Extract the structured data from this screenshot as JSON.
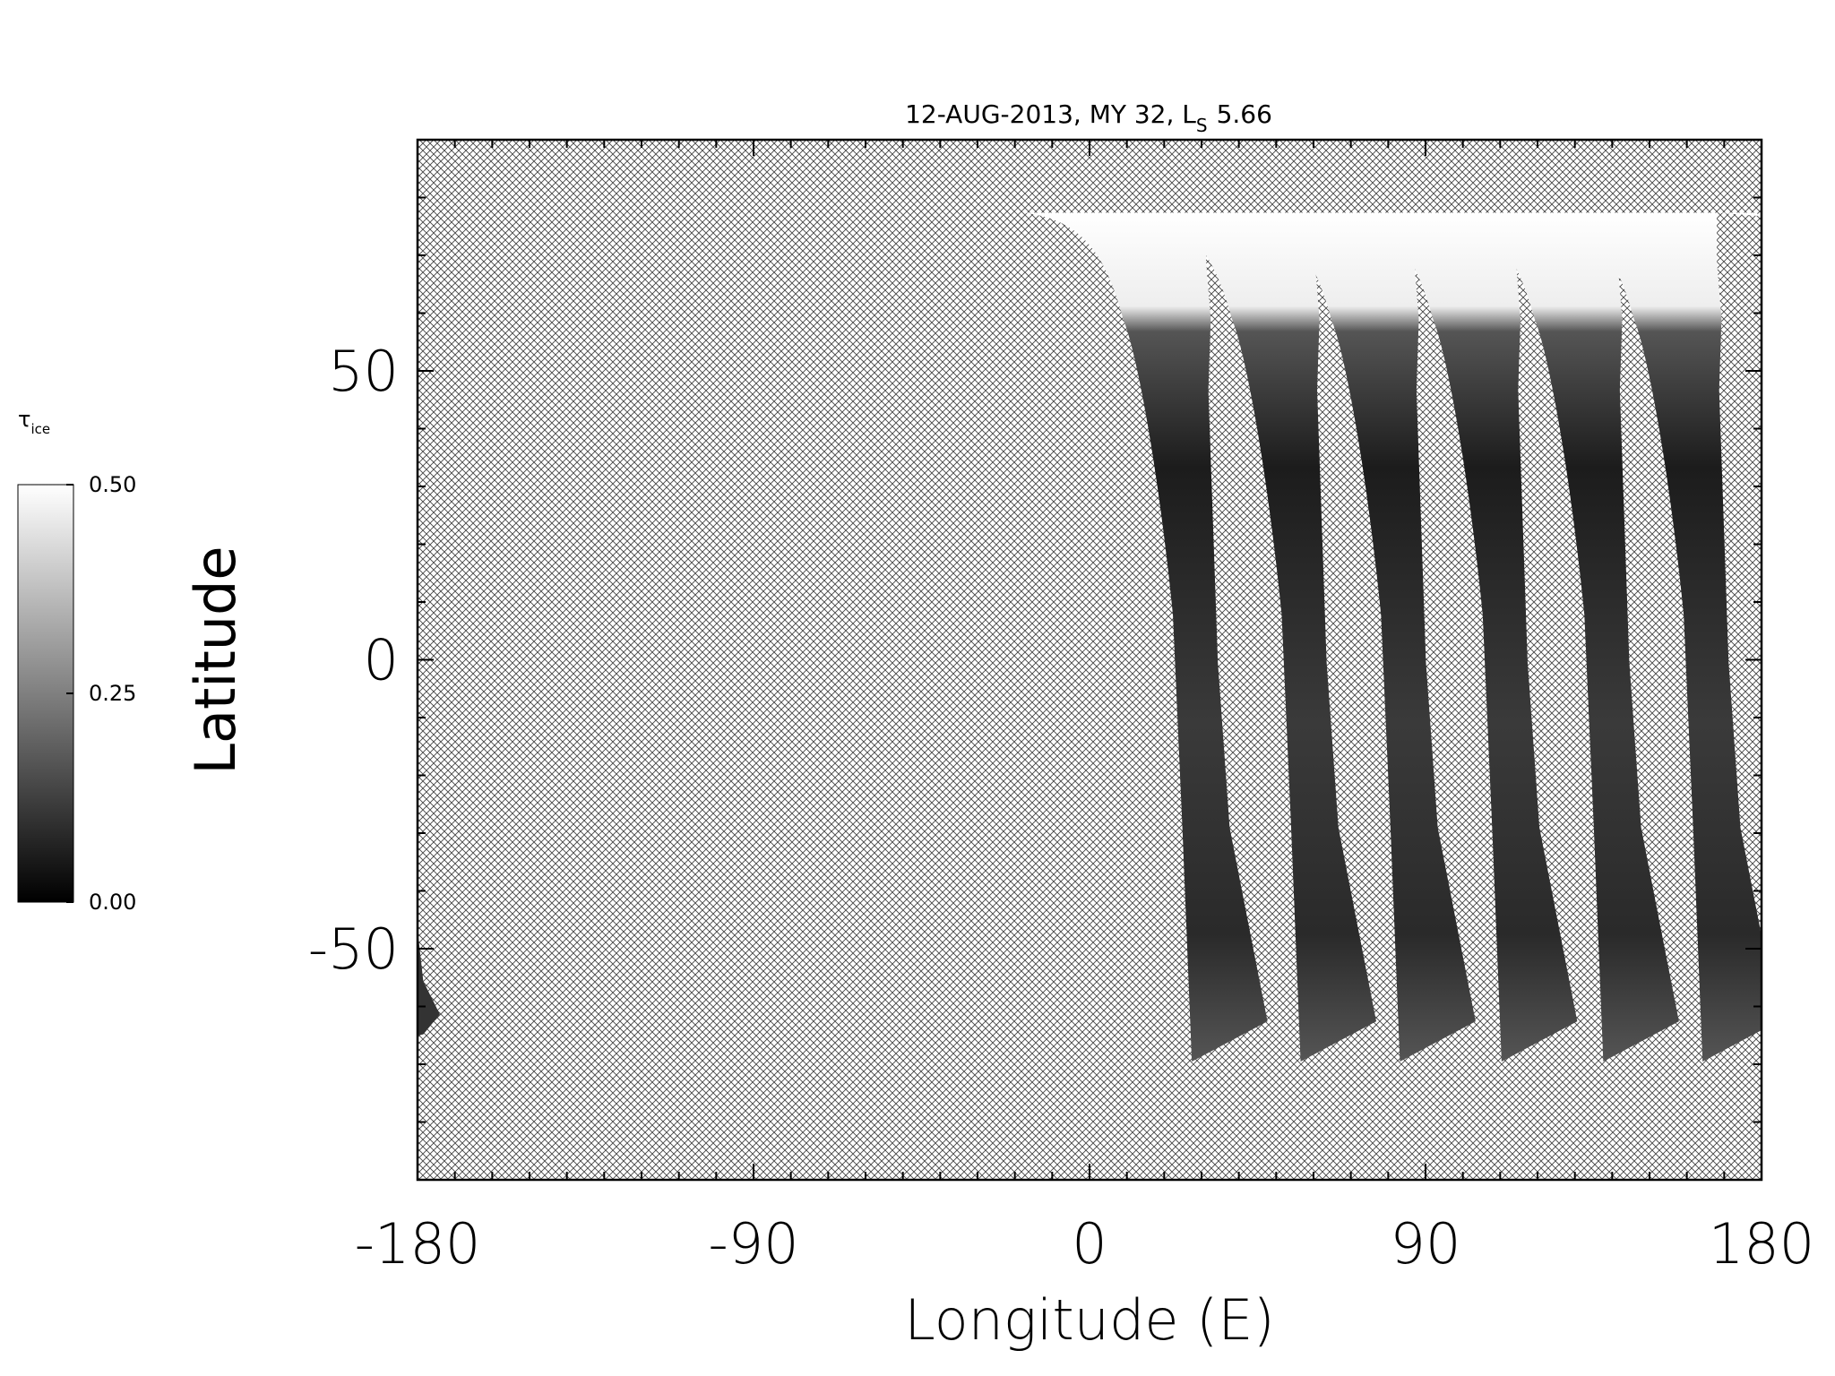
{
  "chart_data": {
    "type": "map",
    "title": "12-AUG-2013, MY 32,  L",
    "title_subscript": "S",
    "title_suffix": "5.66",
    "x_label": "Longitude (E)",
    "y_label": "Latitude",
    "xlim": [
      -180,
      180
    ],
    "ylim": [
      -90,
      90
    ],
    "xticks": [
      -180,
      -90,
      0,
      90,
      180
    ],
    "yticks": [
      -50,
      0,
      50
    ],
    "xminorticks": [
      -170,
      -160,
      -150,
      -140,
      -130,
      -120,
      -110,
      -100,
      -80,
      -70,
      -60,
      -50,
      -40,
      -30,
      -20,
      -10,
      10,
      20,
      30,
      40,
      50,
      60,
      70,
      80,
      100,
      110,
      120,
      130,
      140,
      150,
      160,
      170
    ],
    "yminorticks": [
      -80,
      -70,
      -60,
      -40,
      -30,
      -20,
      -10,
      10,
      20,
      30,
      40,
      60,
      70,
      80
    ],
    "colorbar": {
      "label": "τ",
      "label_subscript": "ice",
      "lim": [
        0,
        0.5
      ],
      "ticks": [
        {
          "value": 0.5,
          "label": "0.50"
        },
        {
          "value": 0.25,
          "label": "0.25"
        },
        {
          "value": 0,
          "label": "0.00"
        }
      ],
      "colors": [
        "#000000",
        "#ffffff"
      ]
    }
  }
}
